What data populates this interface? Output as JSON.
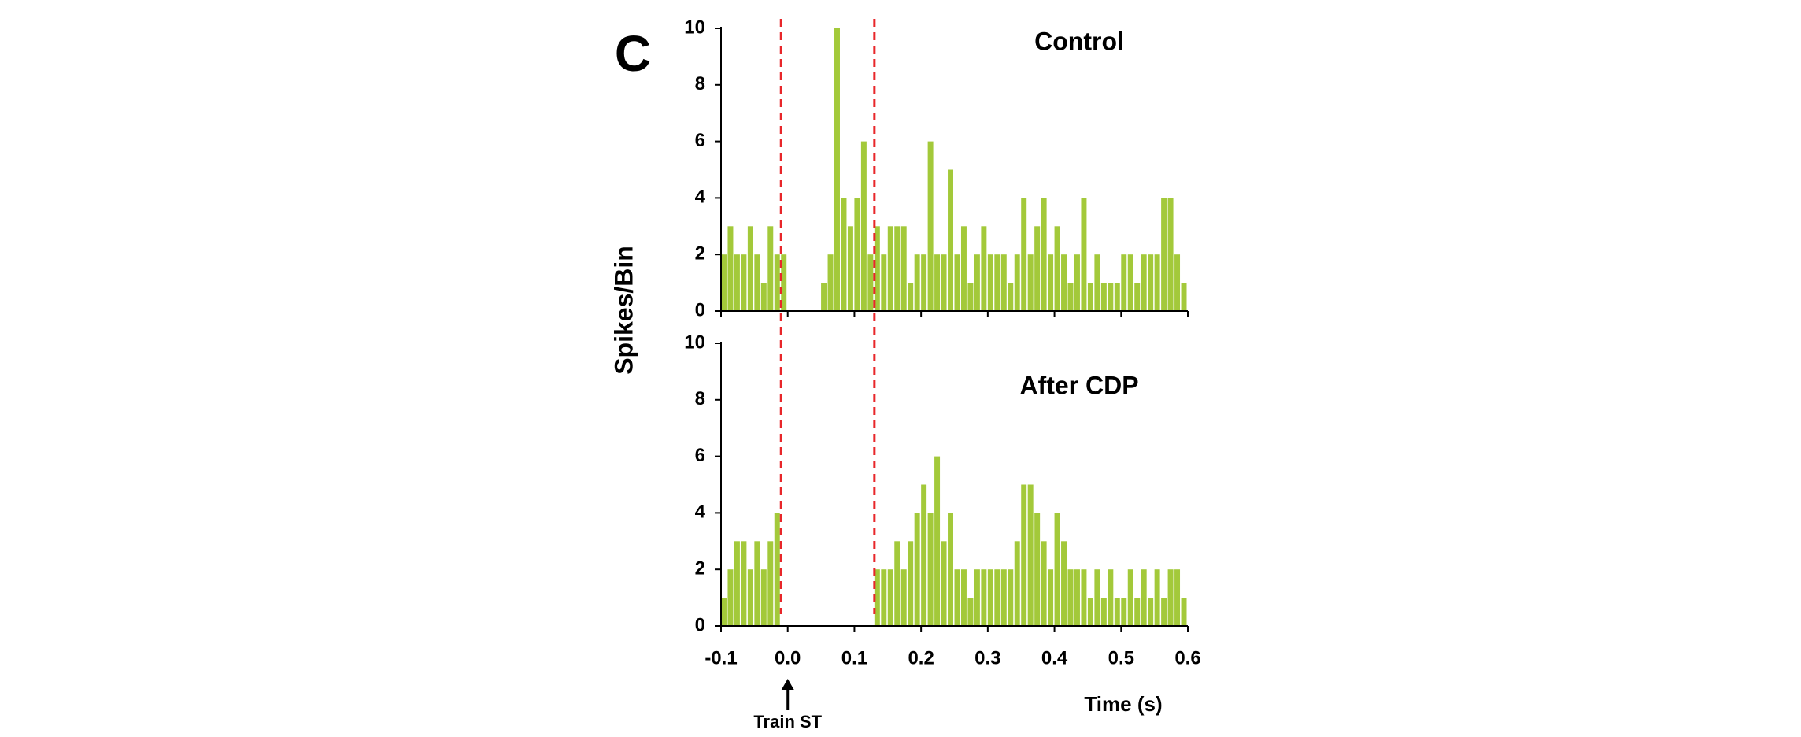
{
  "panel_label": "C",
  "ylabel": "Spikes/Bin",
  "xlabel": "Time (s)",
  "annotations": [
    {
      "text": "Train ST",
      "x": 0
    }
  ],
  "markers": {
    "x": [
      -0.01,
      0.13
    ],
    "color": "#e8262a"
  },
  "chart_data": [
    {
      "type": "histogram",
      "title": "Control",
      "color": "#a3c93a",
      "bins": [
        -0.1,
        -0.09,
        -0.08,
        -0.07,
        -0.06,
        -0.05,
        -0.04,
        -0.03,
        -0.02,
        -0.01,
        0,
        0.01,
        0.02,
        0.03,
        0.04,
        0.05,
        0.06,
        0.07,
        0.08,
        0.09,
        0.1,
        0.11,
        0.12,
        0.13,
        0.14,
        0.15,
        0.16,
        0.17,
        0.18,
        0.19,
        0.2,
        0.21,
        0.22,
        0.23,
        0.24,
        0.25,
        0.26,
        0.27,
        0.28,
        0.29,
        0.3,
        0.31,
        0.32,
        0.33,
        0.34,
        0.35,
        0.36,
        0.37,
        0.38,
        0.39,
        0.4,
        0.41,
        0.42,
        0.43,
        0.44,
        0.45,
        0.46,
        0.47,
        0.48,
        0.49,
        0.5,
        0.51,
        0.52,
        0.53,
        0.54,
        0.55,
        0.56,
        0.57,
        0.58,
        0.59,
        0.6
      ],
      "values": [
        2,
        3,
        2,
        2,
        3,
        2,
        1,
        3,
        2,
        2,
        0,
        0,
        0,
        0,
        0,
        1,
        2,
        10,
        4,
        3,
        4,
        6,
        2,
        3,
        2,
        3,
        3,
        3,
        1,
        2,
        2,
        6,
        2,
        2,
        5,
        2,
        3,
        1,
        2,
        3,
        2,
        2,
        2,
        1,
        2,
        4,
        2,
        3,
        4,
        2,
        3,
        2,
        1,
        2,
        4,
        1,
        2,
        1,
        1,
        1,
        2,
        2,
        1,
        2,
        2,
        2,
        4,
        4,
        2,
        1
      ],
      "xlim": [
        -0.1,
        0.6
      ],
      "xticks": [
        -0.1,
        0,
        0.1,
        0.2,
        0.3,
        0.4,
        0.5,
        0.6
      ],
      "ylim": [
        0,
        10
      ],
      "yticks": [
        0,
        2,
        4,
        6,
        8,
        10
      ]
    },
    {
      "type": "histogram",
      "title": "After CDP",
      "color": "#a3c93a",
      "bins": [
        -0.1,
        -0.09,
        -0.08,
        -0.07,
        -0.06,
        -0.05,
        -0.04,
        -0.03,
        -0.02,
        -0.01,
        0,
        0.01,
        0.02,
        0.03,
        0.04,
        0.05,
        0.06,
        0.07,
        0.08,
        0.09,
        0.1,
        0.11,
        0.12,
        0.13,
        0.14,
        0.15,
        0.16,
        0.17,
        0.18,
        0.19,
        0.2,
        0.21,
        0.22,
        0.23,
        0.24,
        0.25,
        0.26,
        0.27,
        0.28,
        0.29,
        0.3,
        0.31,
        0.32,
        0.33,
        0.34,
        0.35,
        0.36,
        0.37,
        0.38,
        0.39,
        0.4,
        0.41,
        0.42,
        0.43,
        0.44,
        0.45,
        0.46,
        0.47,
        0.48,
        0.49,
        0.5,
        0.51,
        0.52,
        0.53,
        0.54,
        0.55,
        0.56,
        0.57,
        0.58,
        0.59,
        0.6
      ],
      "values": [
        1,
        2,
        3,
        3,
        2,
        3,
        2,
        3,
        4,
        0,
        0,
        0,
        0,
        0,
        0,
        0,
        0,
        0,
        0,
        0,
        0,
        0,
        0,
        2,
        2,
        2,
        3,
        2,
        3,
        4,
        5,
        4,
        6,
        3,
        4,
        2,
        2,
        1,
        2,
        2,
        2,
        2,
        2,
        2,
        3,
        5,
        5,
        4,
        3,
        2,
        4,
        3,
        2,
        2,
        2,
        1,
        2,
        1,
        2,
        1,
        1,
        2,
        1,
        2,
        1,
        2,
        1,
        2,
        2,
        1
      ],
      "xlim": [
        -0.1,
        0.6
      ],
      "xticks": [
        {
          "value": -0.1,
          "label": "-0.1"
        },
        {
          "value": 0,
          "label": "0.0"
        },
        0.1,
        0.2,
        0.3,
        0.4,
        0.5,
        0.6
      ],
      "ylim": [
        0,
        10
      ],
      "yticks": [
        0,
        2,
        4,
        6,
        8,
        10
      ]
    }
  ]
}
